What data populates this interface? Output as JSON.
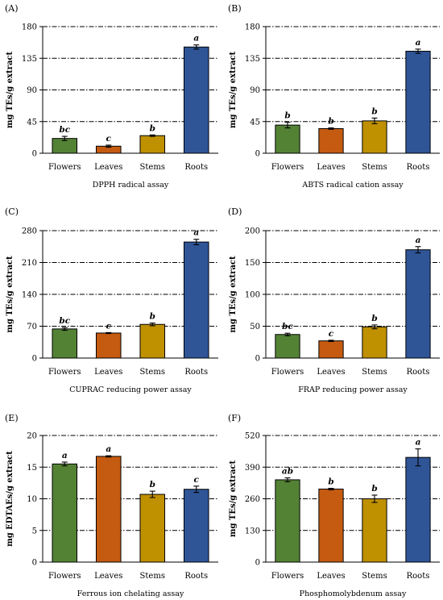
{
  "chart_data": [
    {
      "panel": "(A)",
      "type": "bar",
      "categories": [
        "Flowers",
        "Leaves",
        "Stems",
        "Roots"
      ],
      "values": [
        21,
        10,
        25,
        151
      ],
      "errors": [
        3,
        1.5,
        1,
        3
      ],
      "letters": [
        "bc",
        "c",
        "b",
        "a"
      ],
      "colors": [
        "#548235",
        "#c55a11",
        "#bf9000",
        "#2f5597"
      ],
      "xlabel": "DPPH radical assay",
      "ylabel": "mg TEs/g extract",
      "ylim": [
        0,
        180
      ],
      "ticks": [
        "0",
        "45",
        "90",
        "135",
        "180"
      ]
    },
    {
      "panel": "(B)",
      "type": "bar",
      "categories": [
        "Flowers",
        "Leaves",
        "Stems",
        "Roots"
      ],
      "values": [
        40,
        35,
        46,
        145
      ],
      "errors": [
        4,
        1,
        4,
        3
      ],
      "letters": [
        "b",
        "b",
        "b",
        "a"
      ],
      "colors": [
        "#548235",
        "#c55a11",
        "#bf9000",
        "#2f5597"
      ],
      "xlabel": "ABTS radical cation assay",
      "ylabel": "mg TEs/g extract",
      "ylim": [
        0,
        180
      ],
      "ticks": [
        "0",
        "45",
        "90",
        "135",
        "180"
      ]
    },
    {
      "panel": "(C)",
      "type": "bar",
      "categories": [
        "Flowers",
        "Leaves",
        "Stems",
        "Roots"
      ],
      "values": [
        64,
        55,
        74,
        255
      ],
      "errors": [
        3,
        1,
        3,
        6
      ],
      "letters": [
        "bc",
        "c",
        "b",
        "a"
      ],
      "colors": [
        "#548235",
        "#c55a11",
        "#bf9000",
        "#2f5597"
      ],
      "xlabel": "CUPRAC reducing power assay",
      "ylabel": "mg TEs/g extract",
      "ylim": [
        0,
        280
      ],
      "ticks": [
        "0",
        "70",
        "140",
        "210",
        "280"
      ]
    },
    {
      "panel": "(D)",
      "type": "bar",
      "categories": [
        "Flowers",
        "Leaves",
        "Stems",
        "Roots"
      ],
      "values": [
        37,
        27,
        49,
        170
      ],
      "errors": [
        2,
        1,
        3,
        5
      ],
      "letters": [
        "bc",
        "c",
        "b",
        "a"
      ],
      "colors": [
        "#548235",
        "#c55a11",
        "#bf9000",
        "#2f5597"
      ],
      "xlabel": "FRAP reducing power assay",
      "ylabel": "mg TEs/g extract",
      "ylim": [
        0,
        200
      ],
      "ticks": [
        "0",
        "50",
        "100",
        "150",
        "200"
      ]
    },
    {
      "panel": "(E)",
      "type": "bar",
      "categories": [
        "Flowers",
        "Leaves",
        "Stems",
        "Roots"
      ],
      "values": [
        15.5,
        16.7,
        10.7,
        11.5
      ],
      "errors": [
        0.3,
        0.1,
        0.5,
        0.5
      ],
      "letters": [
        "a",
        "a",
        "b",
        "c"
      ],
      "colors": [
        "#548235",
        "#c55a11",
        "#bf9000",
        "#2f5597"
      ],
      "xlabel": "Ferrous ion chelating assay",
      "ylabel": "mg EDTAEs/g extract",
      "ylim": [
        0,
        20
      ],
      "ticks": [
        "0",
        "5",
        "10",
        "15",
        "20"
      ]
    },
    {
      "panel": "(F)",
      "type": "bar",
      "categories": [
        "Flowers",
        "Leaves",
        "Stems",
        "Roots"
      ],
      "values": [
        338,
        300,
        260,
        430
      ],
      "errors": [
        8,
        3,
        15,
        35
      ],
      "letters": [
        "ab",
        "b",
        "b",
        "a"
      ],
      "colors": [
        "#548235",
        "#c55a11",
        "#bf9000",
        "#2f5597"
      ],
      "xlabel": "Phosphomolybdenum assay",
      "ylabel": "mg TEs/g extract",
      "ylim": [
        0,
        520
      ],
      "ticks": [
        "0",
        "130",
        "260",
        "390",
        "520"
      ]
    }
  ]
}
